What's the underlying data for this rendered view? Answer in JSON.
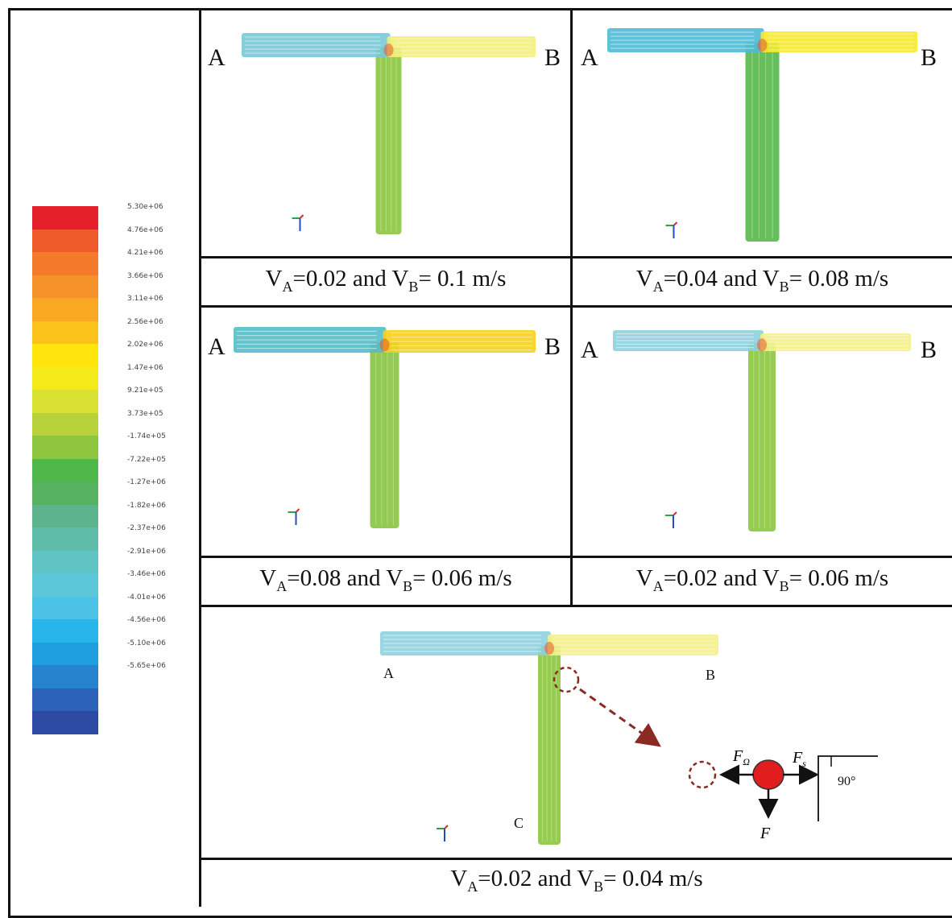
{
  "legend": {
    "colors": [
      "#e4202a",
      "#ee5a2a",
      "#f47a2b",
      "#f6922a",
      "#f9a824",
      "#fbc21c",
      "#ffe50c",
      "#f4ea1a",
      "#d9e133",
      "#b8d23b",
      "#8ec63f",
      "#4fb84a",
      "#56b25f",
      "#5cb48d",
      "#5fbca8",
      "#60c4c5",
      "#5cc7d9",
      "#4cc3e6",
      "#27b5ea",
      "#1f9ee0",
      "#2684cf",
      "#2c63b8",
      "#2d4aa3"
    ],
    "ticks": [
      "5.30e+06",
      "4.76e+06",
      "4.21e+06",
      "3.66e+06",
      "3.11e+06",
      "2.56e+06",
      "2.02e+06",
      "1.47e+06",
      "9.21e+05",
      "3.73e+05",
      "-1.74e+05",
      "-7.22e+05",
      "-1.27e+06",
      "-1.82e+06",
      "-2.37e+06",
      "-2.91e+06",
      "-3.46e+06",
      "-4.01e+06",
      "-4.56e+06",
      "-5.10e+06",
      "-5.65e+06"
    ]
  },
  "panels": [
    {
      "a": "A",
      "b": "B",
      "va": "0.02",
      "vb": "0.1",
      "unit": "m/s"
    },
    {
      "a": "A",
      "b": "B",
      "va": "0.04",
      "vb": "0.08",
      "unit": "m/s"
    },
    {
      "a": "A",
      "b": "B",
      "va": "0.08",
      "vb": "0.06",
      "unit": "m/s"
    },
    {
      "a": "A",
      "b": "B",
      "va": "0.02",
      "vb": "0.06",
      "unit": "m/s"
    },
    {
      "a": "A",
      "b": "B",
      "c": "C",
      "va": "0.02",
      "vb": "0.04",
      "unit": "m/s"
    }
  ],
  "caption_parts": {
    "v": "V",
    "sub_a": "A",
    "sub_b": "B",
    "eq": "=",
    "and": " and ",
    "eq2": "= "
  },
  "force_diagram": {
    "f_left": "F",
    "f_left_sub": "Ω",
    "f_right": "F",
    "f_right_sub": "s",
    "f_down": "F",
    "angle": "90°"
  }
}
